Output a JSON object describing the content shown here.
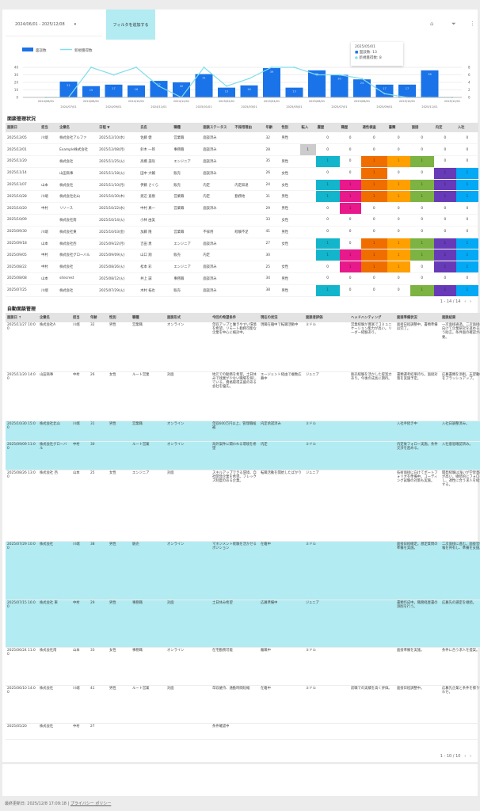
{
  "header": {
    "date_range": "2024/06/01 - 2025/12/08",
    "cta_label": "フィルタを追加する"
  },
  "colors": {
    "bar": "#1a73e8",
    "line": "#80deea",
    "teal": "#12b5cb",
    "pink": "#e8198b",
    "orange": "#f06e00",
    "amber": "#ffa000",
    "green": "#7cb342",
    "purple": "#673ab7",
    "blue": "#03a9f4",
    "highlight": "#b2ebf2"
  },
  "chart_data": {
    "type": "bar",
    "legend": [
      "面談数",
      "新規獲得数"
    ],
    "legend_position": "top-left",
    "categories": [
      "2024/06/01",
      "2024/07/01",
      "2024/08/01",
      "2024/09/01",
      "2024/10/01",
      "2024/11/01",
      "2024/12/01",
      "2025/01/01",
      "2025/02/01",
      "2025/03/01",
      "2025/04/01",
      "2025/05/01",
      "2025/06/01",
      "2025/07/01",
      "2025/08/01",
      "2025/09/01",
      "2025/10/01",
      "2025/11/01",
      "2025/12/01"
    ],
    "series": [
      {
        "name": "面談数",
        "type": "bar",
        "axis": "left",
        "values": [
          0,
          21,
          15,
          17,
          16,
          22,
          20,
          31,
          13,
          16,
          39,
          13,
          36,
          30,
          24,
          17,
          17,
          36,
          0
        ]
      },
      {
        "name": "新規獲得数",
        "type": "line",
        "axis": "right",
        "values": [
          0,
          0,
          8,
          6,
          8,
          3,
          0,
          8,
          3,
          5,
          8,
          8,
          6,
          6,
          5,
          1,
          0,
          0,
          0
        ]
      }
    ],
    "ylim": [
      0,
      40
    ],
    "yticks": [
      0,
      10,
      20,
      30,
      40
    ],
    "y2lim": [
      0,
      8
    ],
    "y2ticks": [
      0,
      2,
      4,
      6,
      8
    ],
    "grid": true
  },
  "tooltip": {
    "title": "2025/05/01",
    "row1": "面談数: 13",
    "row2": "新規獲得数: 8"
  },
  "table1": {
    "title": "面談管理状況",
    "headers": [
      "面談日",
      "担当",
      "企業名",
      "日程 ▼",
      "氏名",
      "職種",
      "面談ステータス",
      "不採用理由",
      "年齢",
      "性別",
      "転入",
      "履歴",
      "職歴",
      "適性検査",
      "書類",
      "面接",
      "内定",
      "入社"
    ],
    "pager": "1 - 14 / 14",
    "marks": [
      "teal",
      "pink",
      "orange",
      "amber",
      "green",
      "purple",
      "blue"
    ],
    "rows": [
      {
        "cells": [
          "2025/12/05",
          "川端",
          "株式会社アルファ",
          "2025/12/10(水)",
          "佐藤 健",
          "営業職",
          "面談済み",
          "",
          "32",
          "男性",
          ""
        ],
        "flags": [
          0,
          0,
          0,
          0,
          0,
          0,
          0
        ]
      },
      {
        "cells": [
          "2025/12/01",
          "",
          "Example株式会社",
          "2025/12/08(月)",
          "鈴木 一郎",
          "事務職",
          "面談済み",
          "",
          "28",
          "",
          "1"
        ],
        "flags": [
          0,
          0,
          0,
          0,
          0,
          0,
          0
        ]
      },
      {
        "cells": [
          "2025/11/20",
          "",
          "株式会社",
          "2025/11/25(火)",
          "高橋 美咲",
          "エンジニア",
          "面談済み",
          "",
          "35",
          "男性",
          ""
        ],
        "flags": [
          1,
          0,
          1,
          1,
          1,
          0,
          0
        ]
      },
      {
        "cells": [
          "2025/11/14",
          "",
          "山田商事",
          "2025/11/18(火)",
          "田中 大輔",
          "販売",
          "面談済み",
          "",
          "26",
          "女性",
          ""
        ],
        "flags": [
          0,
          0,
          1,
          0,
          0,
          1,
          1
        ]
      },
      {
        "cells": [
          "2025/11/07",
          "山本",
          "株式会社",
          "2025/11/10(月)",
          "伊藤 さくら",
          "販売",
          "内定",
          "内定辞退",
          "24",
          "女性",
          ""
        ],
        "flags": [
          1,
          1,
          1,
          1,
          1,
          1,
          1
        ]
      },
      {
        "cells": [
          "2025/10/28",
          "川端",
          "株式会社北山",
          "2025/10/30(木)",
          "渡辺 直樹",
          "営業職",
          "内定",
          "勤務地",
          "31",
          "男性",
          ""
        ],
        "flags": [
          1,
          1,
          1,
          1,
          1,
          1,
          1
        ]
      },
      {
        "cells": [
          "2025/10/20",
          "中村",
          "リソース",
          "2025/10/22(水)",
          "中村 真一",
          "営業職",
          "面談済み",
          "",
          "29",
          "男性",
          ""
        ],
        "flags": [
          0,
          1,
          0,
          0,
          0,
          0,
          0
        ]
      },
      {
        "cells": [
          "2025/10/09",
          "",
          "株式会社南",
          "2025/10/14(火)",
          "小林 由美",
          "",
          "",
          "",
          "33",
          "女性",
          ""
        ],
        "flags": [
          0,
          0,
          0,
          0,
          0,
          0,
          0
        ]
      },
      {
        "cells": [
          "2025/09/30",
          "川端",
          "株式会社東",
          "2025/10/03(金)",
          "加藤 隆",
          "営業職",
          "不採用",
          "経験不足",
          "41",
          "男性",
          ""
        ],
        "flags": [
          0,
          0,
          0,
          0,
          0,
          0,
          0
        ]
      },
      {
        "cells": [
          "2025/09/18",
          "山本",
          "株式会社西",
          "2025/09/22(月)",
          "吉田 恵",
          "エンジニア",
          "面談済み",
          "",
          "27",
          "女性",
          ""
        ],
        "flags": [
          1,
          0,
          1,
          1,
          1,
          1,
          1
        ]
      },
      {
        "cells": [
          "2025/09/05",
          "中村",
          "株式会社グローバル",
          "2025/09/09(火)",
          "山口 翔",
          "販売",
          "内定",
          "",
          "30",
          "",
          ""
        ],
        "flags": [
          1,
          1,
          1,
          1,
          1,
          1,
          1
        ]
      },
      {
        "cells": [
          "2025/08/22",
          "中村",
          "株式会社",
          "2025/08/26(火)",
          "松本 彩",
          "エンジニア",
          "面談済み",
          "",
          "25",
          "女性",
          ""
        ],
        "flags": [
          0,
          1,
          1,
          1,
          0,
          1,
          1
        ]
      },
      {
        "cells": [
          "2025/08/08",
          "山本",
          "sitecrest",
          "2025/08/12(火)",
          "井上 誠",
          "事務職",
          "面談済み",
          "",
          "34",
          "男性",
          ""
        ],
        "flags": [
          0,
          0,
          0,
          0,
          0,
          0,
          0
        ]
      },
      {
        "cells": [
          "2025/07/25",
          "川端",
          "株式会社",
          "2025/07/29(火)",
          "木村 拓也",
          "販売",
          "面談済み",
          "",
          "38",
          "男性",
          ""
        ],
        "flags": [
          1,
          0,
          0,
          0,
          1,
          1,
          1
        ]
      }
    ]
  },
  "table2": {
    "title": "自動面談管理",
    "headers": [
      "面談日 ↑",
      "企業名",
      "担当",
      "年齢",
      "性別",
      "職種",
      "面談形式",
      "今回の希望条件",
      "現在の状況",
      "面談者評価",
      "ヘッドハンティング",
      "面接準備状況",
      "面談結果",
      "入社"
    ],
    "pager": "1 - 10 / 10",
    "rows": [
      {
        "hl": false,
        "cells": [
          "2025/11/27 10:00",
          "株式会社A",
          "川端",
          "32",
          "男性",
          "営業職",
          "オンライン",
          "年収アップと働きやすい環境を希望。リモート勤務可能な企業を中心に検討中。",
          "現職在籍中で転職活動中",
          "ミドル",
          "営業経験が豊富でコミュニケーション能力が高い。リーダー経験あり。",
          "面接日程調整中。書類準備は完了。",
          "一次面接通過。二次面接に向けて企業研究を進めるよう助言。条件面の確認が必要。",
          ""
        ]
      },
      {
        "hl": false,
        "cells": [
          "2025/11/20 14:00",
          "山田商事",
          "中村",
          "26",
          "女性",
          "ルート営業",
          "対面",
          "地元での勤務を希望。土日休みで残業が少ない職場を探している。資格取得支援のある会社を優先。",
          "エージェント経由で複数応募中",
          "ジュニア",
          "販売経験を活かした提案力あり。今後の成長に期待。",
          "書類選考結果待ち。面接対策を実施予定。",
          "応募書類を添削。志望動機をブラッシュアップ。",
          ""
        ]
      },
      {
        "hl": true,
        "cells": [
          "2025/10/30 15:00",
          "株式会社北山",
          "川端",
          "31",
          "男性",
          "営業職",
          "オンライン",
          "年収600万円以上、管理職候補",
          "内定承諾済み",
          "ミドル",
          "",
          "入社手続き中",
          "入社日調整済み。",
          ""
        ]
      },
      {
        "hl": true,
        "cells": [
          "2025/09/09 11:00",
          "株式会社グローバル",
          "中村",
          "30",
          "",
          "ルート営業",
          "オンライン",
          "海外案件に関われる環境を希望",
          "内定",
          "ミドル",
          "",
          "内定後フォロー実施。条件交渉を進める。",
          "入社意思確認済み。",
          ""
        ]
      },
      {
        "hl": false,
        "cells": [
          "2025/08/26 13:00",
          "株式会社 西",
          "山本",
          "25",
          "女性",
          "エンジニア",
          "対面",
          "スキルアップできる環境、自社開発企業を希望。フレックス制度のある企業。",
          "転職活動を開始したばかり",
          "ジュニア",
          "",
          "技術面接に向けてポートフォリオを準備中。コーディング試験の対策も実施。",
          "開発経験は浅いが学習意欲が高い。継続的にフォローし、適性に合う求人を紹介する。",
          ""
        ]
      },
      {
        "hl": true,
        "cells": [
          "2025/07/29 10:00",
          "株式会社",
          "川端",
          "38",
          "男性",
          "販売",
          "オンライン",
          "マネジメント経験を活かせるポジション",
          "在籍中",
          "ミドル",
          "",
          "面接日程確定。想定質問の準備を実施。",
          "二次面接に進む。面接官情報を共有し、準備を支援。",
          ""
        ]
      },
      {
        "hl": true,
        "cells": [
          "2025/07/15 16:00",
          "株式会社 東",
          "中村",
          "29",
          "男性",
          "事務職",
          "対面",
          "土日休み希望",
          "応募準備中",
          "ジュニア",
          "",
          "書類作成中。職務経歴書の添削を行う。",
          "応募先の選定を継続。",
          ""
        ]
      },
      {
        "hl": false,
        "cells": [
          "2025/06/24 11:00",
          "株式会社南",
          "山本",
          "33",
          "女性",
          "事務職",
          "オンライン",
          "在宅勤務可能",
          "離職中",
          "ミドル",
          "",
          "面接準備を実施。",
          "条件に合う求人を提案。",
          ""
        ]
      },
      {
        "hl": false,
        "cells": [
          "2025/06/10 14:00",
          "株式会社",
          "川端",
          "41",
          "男性",
          "ルート営業",
          "対面",
          "年収維持、通勤時間短縮",
          "在籍中",
          "ミドル",
          "前職での実績を高く評価。",
          "面接日程調整中。",
          "応募先企業と条件を擦り合わせ。",
          ""
        ]
      },
      {
        "hl": false,
        "cells": [
          "2025/05/20",
          "株式会社",
          "中村",
          "27",
          "",
          "",
          "",
          "条件確認中",
          "",
          "",
          "",
          "",
          "",
          ""
        ]
      }
    ]
  },
  "footer": {
    "updated": "最終更新日: 2025/12/8 17:09:18",
    "privacy": "プライバシー ポリシー"
  }
}
